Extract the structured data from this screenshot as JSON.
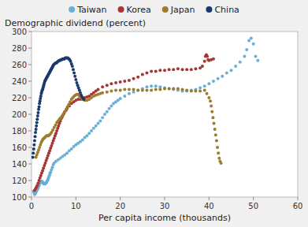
{
  "chart_data": {
    "type": "scatter",
    "ylabel": "Demographic dividend (percent)",
    "xlabel": "Per capita income (thousands)",
    "xlim": [
      0,
      60
    ],
    "ylim": [
      100,
      300
    ],
    "xticks": [
      0,
      10,
      20,
      30,
      40,
      50,
      60
    ],
    "yticks": [
      100,
      120,
      140,
      160,
      180,
      200,
      220,
      240,
      260,
      280,
      300
    ],
    "grid": false,
    "legend": "top",
    "series": [
      {
        "name": "Taiwan",
        "color": "#6baed6",
        "x": [
          0.4,
          0.6,
          0.7,
          0.8,
          0.9,
          1.0,
          1.1,
          1.2,
          1.3,
          1.4,
          1.5,
          1.6,
          1.7,
          1.8,
          1.9,
          2.0,
          2.1,
          2.2,
          2.3,
          2.4,
          2.5,
          2.6,
          2.7,
          2.8,
          2.9,
          3.0,
          3.1,
          3.2,
          3.3,
          3.4,
          3.5,
          3.6,
          3.7,
          3.8,
          3.9,
          4.0,
          4.1,
          4.2,
          4.3,
          4.5,
          4.7,
          4.9,
          5.1,
          5.5,
          6.0,
          6.5,
          7.0,
          7.5,
          8.0,
          8.5,
          9.0,
          9.5,
          10.0,
          10.5,
          11.0,
          11.5,
          12.0,
          12.5,
          13.0,
          13.5,
          14.0,
          14.5,
          15.0,
          15.5,
          16.0,
          16.5,
          17.0,
          17.5,
          18.0,
          18.5,
          19.0,
          19.5,
          20.0,
          21.0,
          22.0,
          23.0,
          24.0,
          25.0,
          26.0,
          27.0,
          28.0,
          29.0,
          30.0,
          31.0,
          32.0,
          33.0,
          34.0,
          35.0,
          36.0,
          37.0,
          38.0,
          39.0,
          40.0,
          41.0,
          42.0,
          43.0,
          44.0,
          45.0,
          46.0,
          47.0,
          48.0,
          48.5,
          49.0,
          49.5,
          50.0,
          50.5,
          51.0
        ],
        "values": [
          107,
          105,
          103,
          104,
          105,
          106,
          107,
          108,
          109,
          110,
          111,
          113,
          114,
          116,
          117,
          118,
          119,
          119,
          119,
          118,
          118,
          117,
          117,
          116,
          116,
          116,
          116,
          117,
          117,
          118,
          119,
          120,
          121,
          123,
          124,
          126,
          127,
          129,
          130,
          133,
          136,
          139,
          141,
          143,
          145,
          147,
          149,
          151,
          153,
          156,
          158,
          161,
          163,
          165,
          167,
          169,
          172,
          174,
          177,
          180,
          183,
          186,
          189,
          192,
          196,
          200,
          203,
          207,
          210,
          213,
          215,
          217,
          219,
          222,
          225,
          227,
          229,
          231,
          233,
          234,
          234,
          233,
          232,
          231,
          230,
          229,
          228,
          228,
          229,
          230,
          232,
          234,
          237,
          240,
          243,
          246,
          250,
          253,
          258,
          263,
          270,
          278,
          289,
          292,
          285,
          270,
          265
        ]
      },
      {
        "name": "Korea",
        "color": "#a63631",
        "x": [
          0.7,
          0.9,
          1.1,
          1.3,
          1.5,
          1.7,
          1.9,
          2.1,
          2.3,
          2.5,
          2.7,
          2.9,
          3.1,
          3.3,
          3.5,
          3.7,
          3.9,
          4.1,
          4.3,
          4.5,
          4.7,
          4.9,
          5.1,
          5.3,
          5.5,
          5.7,
          5.9,
          6.1,
          6.3,
          6.5,
          6.7,
          6.9,
          7.1,
          7.3,
          7.5,
          7.8,
          8.0,
          8.5,
          9.0,
          9.5,
          10.0,
          10.5,
          11.0,
          11.5,
          12.0,
          12.5,
          13.0,
          13.5,
          14.0,
          14.5,
          15.0,
          16.0,
          17.0,
          18.0,
          19.0,
          20.0,
          21.0,
          22.0,
          23.0,
          24.0,
          25.0,
          26.0,
          27.0,
          28.0,
          29.0,
          30.0,
          31.0,
          32.0,
          33.0,
          34.0,
          35.0,
          36.0,
          37.0,
          38.0,
          38.5,
          39.0,
          39.2,
          39.4,
          39.6,
          39.8,
          40.0,
          40.5,
          41.0
        ],
        "values": [
          108,
          110,
          112,
          114,
          117,
          120,
          123,
          126,
          129,
          132,
          135,
          138,
          141,
          144,
          147,
          150,
          153,
          156,
          159,
          162,
          165,
          168,
          171,
          174,
          177,
          180,
          183,
          186,
          189,
          192,
          195,
          197,
          199,
          201,
          203,
          205,
          207,
          210,
          213,
          215,
          217,
          218,
          218,
          219,
          220,
          221,
          222,
          224,
          226,
          228,
          230,
          233,
          235,
          237,
          238,
          239,
          240,
          241,
          243,
          245,
          248,
          250,
          252,
          252,
          253,
          253,
          254,
          254,
          255,
          254,
          254,
          254,
          255,
          256,
          258,
          264,
          270,
          272,
          270,
          266,
          265,
          266,
          267
        ]
      },
      {
        "name": "Japan",
        "color": "#9e7c2e",
        "x": [
          1.0,
          1.2,
          1.4,
          1.6,
          1.8,
          2.0,
          2.2,
          2.4,
          2.6,
          2.8,
          3.0,
          3.2,
          3.4,
          3.6,
          3.8,
          4.0,
          4.2,
          4.5,
          4.8,
          5.1,
          5.4,
          5.7,
          6.0,
          6.3,
          6.6,
          6.9,
          7.2,
          7.5,
          7.8,
          8.1,
          8.4,
          8.7,
          9.0,
          9.3,
          9.6,
          9.9,
          10.2,
          10.5,
          10.8,
          11.1,
          11.5,
          12.0,
          12.5,
          13.0,
          13.5,
          14.0,
          14.5,
          15.0,
          15.5,
          16.0,
          17.0,
          18.0,
          19.0,
          20.0,
          21.0,
          22.0,
          23.0,
          24.0,
          25.0,
          26.0,
          27.0,
          28.0,
          29.0,
          30.0,
          31.0,
          32.0,
          33.0,
          34.0,
          35.0,
          36.0,
          37.0,
          38.0,
          39.0,
          39.5,
          40.0,
          40.3,
          40.5,
          40.7,
          40.9,
          41.1,
          41.3,
          41.5,
          41.7,
          41.9,
          42.1,
          42.3,
          42.5,
          42.7
        ],
        "values": [
          148,
          151,
          154,
          157,
          160,
          163,
          166,
          168,
          170,
          171,
          172,
          173,
          174,
          174,
          174,
          175,
          176,
          178,
          181,
          184,
          187,
          190,
          192,
          194,
          196,
          198,
          200,
          203,
          206,
          209,
          212,
          215,
          218,
          220,
          222,
          223,
          224,
          224,
          222,
          220,
          218,
          217,
          217,
          218,
          220,
          222,
          223,
          224,
          225,
          226,
          227,
          228,
          229,
          229,
          230,
          230,
          230,
          229,
          229,
          229,
          229,
          230,
          230,
          231,
          231,
          231,
          231,
          230,
          229,
          228,
          228,
          228,
          229,
          225,
          220,
          216,
          210,
          203,
          196,
          189,
          182,
          175,
          168,
          160,
          153,
          147,
          143,
          141
        ]
      },
      {
        "name": "China",
        "color": "#1a3a6b",
        "x": [
          0.3,
          0.4,
          0.5,
          0.6,
          0.7,
          0.8,
          0.9,
          1.0,
          1.1,
          1.2,
          1.3,
          1.4,
          1.5,
          1.6,
          1.7,
          1.8,
          1.9,
          2.0,
          2.1,
          2.2,
          2.3,
          2.4,
          2.5,
          2.6,
          2.7,
          2.8,
          2.9,
          3.0,
          3.1,
          3.2,
          3.3,
          3.4,
          3.5,
          3.6,
          3.7,
          3.8,
          3.9,
          4.0,
          4.1,
          4.2,
          4.3,
          4.4,
          4.5,
          4.6,
          4.7,
          4.8,
          4.9,
          5.0,
          5.2,
          5.4,
          5.6,
          5.8,
          6.0,
          6.2,
          6.4,
          6.6,
          6.8,
          7.0,
          7.2,
          7.4,
          7.6,
          7.8,
          8.0,
          8.2,
          8.4,
          8.6,
          8.8,
          9.0,
          9.2,
          9.4,
          9.6,
          9.8,
          10.0,
          10.2,
          10.4,
          10.6,
          10.8,
          11.0,
          11.2,
          11.4,
          11.6,
          11.8
        ],
        "values": [
          148,
          153,
          158,
          163,
          168,
          173,
          178,
          182,
          186,
          190,
          194,
          198,
          202,
          206,
          209,
          213,
          216,
          219,
          222,
          225,
          227,
          229,
          230,
          232,
          234,
          236,
          238,
          240,
          241,
          242,
          243,
          244,
          245,
          246,
          247,
          248,
          249,
          250,
          251,
          252,
          253,
          254,
          255,
          256,
          257,
          258,
          259,
          260,
          261,
          262,
          262,
          263,
          264,
          265,
          265,
          266,
          266,
          267,
          267,
          267,
          268,
          268,
          268,
          268,
          267,
          266,
          264,
          261,
          258,
          254,
          250,
          246,
          242,
          238,
          235,
          232,
          229,
          226,
          223,
          221,
          219,
          218
        ]
      }
    ]
  }
}
